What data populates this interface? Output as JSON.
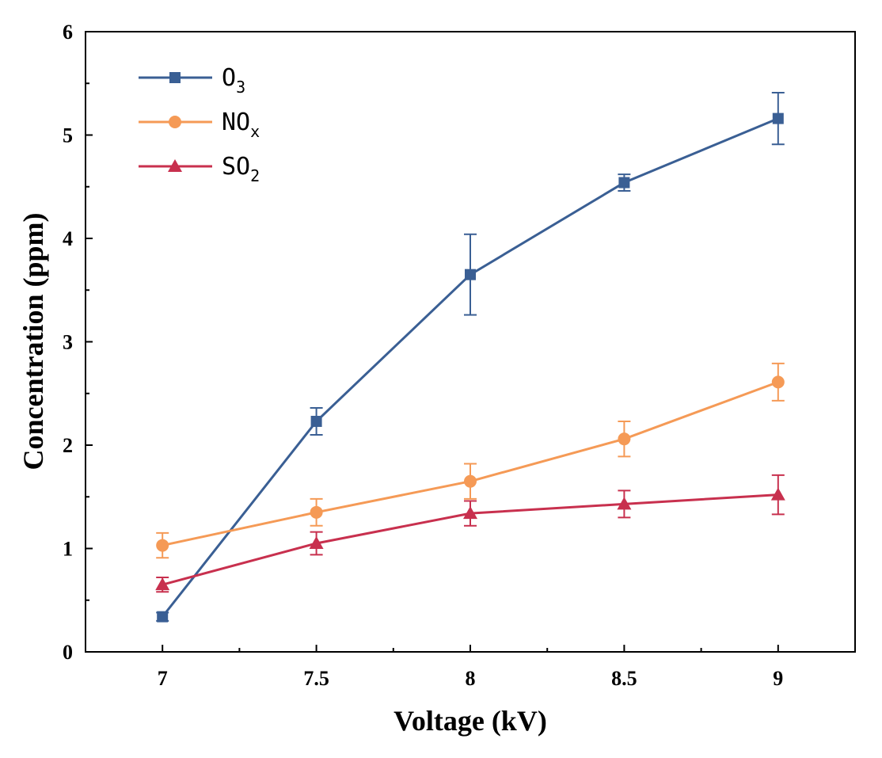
{
  "chart_data": {
    "type": "line",
    "title": "",
    "xlabel": "Voltage (kV)",
    "ylabel": "Concentration (ppm)",
    "x": [
      7,
      7.5,
      8,
      8.5,
      9
    ],
    "x_tick_labels": [
      "7",
      "7.5",
      "8",
      "8.5",
      "9"
    ],
    "xlim": [
      6.75,
      9.25
    ],
    "ylim": [
      0,
      6
    ],
    "y_ticks": [
      0,
      1,
      2,
      3,
      4,
      5,
      6
    ],
    "y_tick_labels": [
      "0",
      "1",
      "2",
      "3",
      "4",
      "5",
      "6"
    ],
    "grid": false,
    "legend_position": "top-left",
    "series": [
      {
        "name": "O3",
        "label_main": "O",
        "label_sub": "3",
        "color": "#3a5f94",
        "marker": "square",
        "values": [
          0.34,
          2.23,
          3.65,
          4.54,
          5.16
        ],
        "errors": [
          0.04,
          0.13,
          0.39,
          0.08,
          0.25
        ]
      },
      {
        "name": "NOx",
        "label_main": "NO",
        "label_sub": "x",
        "color": "#f59a56",
        "marker": "circle",
        "values": [
          1.03,
          1.35,
          1.65,
          2.06,
          2.61
        ],
        "errors": [
          0.12,
          0.13,
          0.17,
          0.17,
          0.18
        ]
      },
      {
        "name": "SO2",
        "label_main": "SO",
        "label_sub": "2",
        "color": "#c8304e",
        "marker": "triangle",
        "values": [
          0.65,
          1.05,
          1.34,
          1.43,
          1.52
        ],
        "errors": [
          0.07,
          0.11,
          0.12,
          0.13,
          0.19
        ]
      }
    ]
  }
}
